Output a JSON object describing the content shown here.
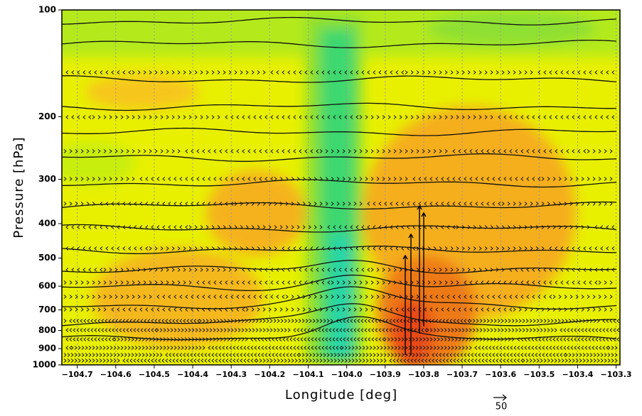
{
  "chart_data": {
    "type": "contour",
    "xlabel": "Longitude [deg]",
    "ylabel": "Pressure [hPa]",
    "reference_vector_label": "50",
    "xlim": [
      -104.74,
      -103.29
    ],
    "xticks": [
      {
        "value": -104.7,
        "label": "−104.7"
      },
      {
        "value": -104.6,
        "label": "−104.6"
      },
      {
        "value": -104.5,
        "label": "−104.5"
      },
      {
        "value": -104.4,
        "label": "−104.4"
      },
      {
        "value": -104.3,
        "label": "−104.3"
      },
      {
        "value": -104.2,
        "label": "−104.2"
      },
      {
        "value": -104.1,
        "label": "−104.1"
      },
      {
        "value": -104.0,
        "label": "−104.0"
      },
      {
        "value": -103.9,
        "label": "−103.9"
      },
      {
        "value": -103.8,
        "label": "−103.8"
      },
      {
        "value": -103.7,
        "label": "−103.7"
      },
      {
        "value": -103.6,
        "label": "−103.6"
      },
      {
        "value": -103.5,
        "label": "−103.5"
      },
      {
        "value": -103.4,
        "label": "−103.4"
      },
      {
        "value": -103.3,
        "label": "−103.3"
      }
    ],
    "ylim": [
      1000,
      100
    ],
    "yticks": [
      100,
      200,
      300,
      400,
      500,
      600,
      700,
      800,
      900,
      1000
    ],
    "ylog": true,
    "grid": true
  }
}
